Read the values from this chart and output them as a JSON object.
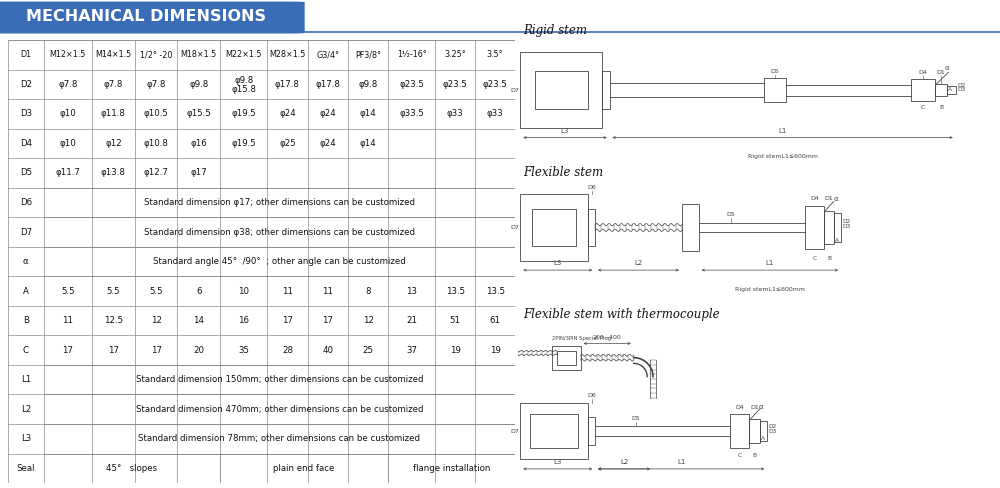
{
  "title": "MECHANICAL DIMENSIONS",
  "title_bg_color": "#3a6db5",
  "title_text_color": "#ffffff",
  "line_color": "#3a6db5",
  "table_border_color": "#888888",
  "bg_color": "#ffffff",
  "header_row": [
    "D1",
    "M12×1.5",
    "M14×1.5",
    "1/2° -20",
    "M18×1.5",
    "M22×1.5",
    "M28×1.5",
    "G3/4°",
    "PF3/8°",
    "1¹⁄₂-16°",
    "3.25°",
    "3.5°"
  ],
  "rows": [
    [
      "D2",
      "φ7.8",
      "φ7.8",
      "φ7.8",
      "φ9.8",
      "φ9.8\nφ15.8",
      "φ17.8",
      "φ17.8",
      "φ9.8",
      "φ23.5",
      "φ23.5",
      "φ23.5"
    ],
    [
      "D3",
      "φ10",
      "φ11.8",
      "φ10.5",
      "φ15.5",
      "φ19.5",
      "φ24",
      "φ24",
      "φ14",
      "φ33.5",
      "φ33",
      "φ33"
    ],
    [
      "D4",
      "φ10",
      "φ12",
      "φ10.8",
      "φ16",
      "φ19.5",
      "φ25",
      "φ24",
      "φ14",
      "",
      "",
      ""
    ],
    [
      "D5",
      "φ11.7",
      "φ13.8",
      "φ12.7",
      "φ17",
      "",
      "",
      "",
      "",
      "",
      "",
      ""
    ],
    [
      "D6",
      "Standard dimension φ17; other dimensions can be customized",
      "",
      "",
      "",
      "",
      "",
      "",
      "",
      "",
      "",
      ""
    ],
    [
      "D7",
      "Standard dimension φ38; other dimensions can be customized",
      "",
      "",
      "",
      "",
      "",
      "",
      "",
      "",
      "",
      ""
    ],
    [
      "α",
      "Standard angle 45°  /90°  ; other angle can be customized",
      "",
      "",
      "",
      "",
      "",
      "",
      "",
      "",
      "",
      ""
    ],
    [
      "A",
      "5.5",
      "5.5",
      "5.5",
      "6",
      "10",
      "11",
      "11",
      "8",
      "13",
      "13.5",
      "13.5"
    ],
    [
      "B",
      "11",
      "12.5",
      "12",
      "14",
      "16",
      "17",
      "17",
      "12",
      "21",
      "51",
      "61"
    ],
    [
      "C",
      "17",
      "17",
      "17",
      "20",
      "35",
      "28",
      "40",
      "25",
      "37",
      "19",
      "19"
    ],
    [
      "L1",
      "Standard dimension 150mm; other dimensions can be customized",
      "",
      "",
      "",
      "",
      "",
      "",
      "",
      "",
      "",
      ""
    ],
    [
      "L2",
      "Standard dimension 470mm; other dimensions can be customized",
      "",
      "",
      "",
      "",
      "",
      "",
      "",
      "",
      "",
      ""
    ],
    [
      "L3",
      "Standard dimension 78mm; other dimensions can be customized",
      "",
      "",
      "",
      "",
      "",
      "",
      "",
      "",
      "",
      ""
    ],
    [
      "Seal",
      "45°   slopes",
      "",
      "",
      "",
      "plain end face",
      "",
      "",
      "",
      "flange installation",
      "",
      ""
    ]
  ],
  "diagram_titles": [
    "Rigid stem",
    "Flexible stem",
    "Flexible stem with thermocouple"
  ],
  "rigid_stem_note": "Rigid stemL1≤600mm",
  "flexible_stem_note": "Rigid stemL1≤600mm"
}
